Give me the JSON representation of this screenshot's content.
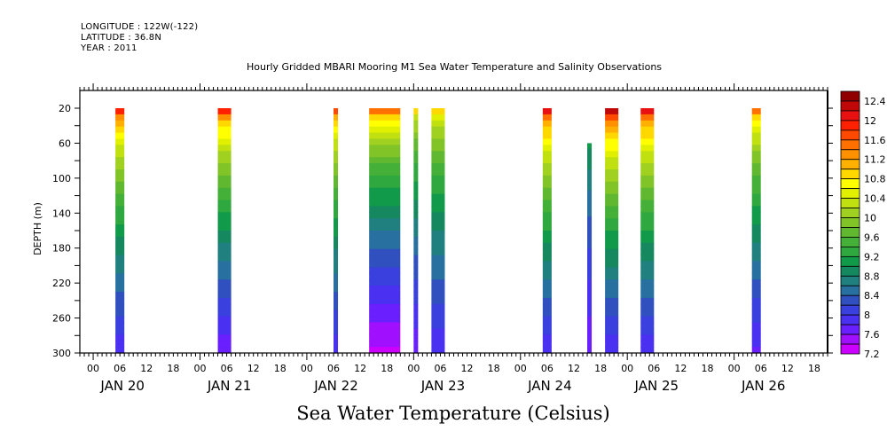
{
  "header": {
    "longitude": "LONGITUDE : 122W(-122)",
    "latitude": "LATITUDE : 36.8N",
    "year": "YEAR : 2011"
  },
  "chart_data": {
    "type": "heatmap",
    "title": "Hourly Gridded MBARI Mooring M1 Sea Water Temperature and Salinity Observations",
    "subtitle": "Sea Water Temperature (Celsius)",
    "xlabel": "",
    "ylabel": "DEPTH (m)",
    "x_range_hours": [
      -3,
      165
    ],
    "x_origin": "JAN 20 00:00",
    "ylim": [
      300,
      0
    ],
    "y_ticks": [
      20,
      60,
      100,
      140,
      180,
      220,
      260,
      300
    ],
    "x_hour_ticks": [
      "00",
      "06",
      "12",
      "18",
      "00",
      "06",
      "12",
      "18",
      "00",
      "06",
      "12",
      "18",
      "00",
      "06",
      "12",
      "18",
      "00",
      "06",
      "12",
      "18",
      "00",
      "06",
      "12",
      "18",
      "00",
      "06",
      "12",
      "18"
    ],
    "x_day_labels": [
      "JAN 20",
      "JAN 21",
      "JAN 22",
      "JAN 23",
      "JAN 24",
      "JAN 25",
      "JAN 26"
    ],
    "colorbar": {
      "levels": [
        7.2,
        7.4,
        7.6,
        7.8,
        8.0,
        8.2,
        8.4,
        8.6,
        8.8,
        9.0,
        9.2,
        9.4,
        9.6,
        9.8,
        10.0,
        10.2,
        10.4,
        10.6,
        10.8,
        11.0,
        11.2,
        11.4,
        11.6,
        11.8,
        12.0,
        12.2,
        12.4,
        12.6
      ],
      "labels": [
        "12.4",
        "12",
        "11.6",
        "11.2",
        "10.8",
        "10.4",
        "10",
        "9.6",
        "9.2",
        "8.8",
        "8.4",
        "8",
        "7.6",
        "7.2"
      ],
      "colors": [
        "#cc00ff",
        "#a010ff",
        "#6a1fff",
        "#4a30f0",
        "#3a40dd",
        "#3050c0",
        "#2870a0",
        "#208080",
        "#158860",
        "#109a4a",
        "#30a840",
        "#45b038",
        "#60b830",
        "#80c428",
        "#a0d020",
        "#c0e010",
        "#e0f000",
        "#ffff00",
        "#ffd800",
        "#ffb000",
        "#ff9000",
        "#ff7000",
        "#ff4800",
        "#ff2000",
        "#e81010",
        "#c00808",
        "#900000"
      ]
    },
    "bars": [
      {
        "start_hour": 5,
        "end_hour": 7,
        "top_depth": 20,
        "surface_temp": 11.8,
        "bottom_temp": 7.8
      },
      {
        "start_hour": 28,
        "end_hour": 31,
        "top_depth": 20,
        "surface_temp": 11.8,
        "bottom_temp": 7.6
      },
      {
        "start_hour": 54,
        "end_hour": 55,
        "top_depth": 20,
        "surface_temp": 11.6,
        "bottom_temp": 7.8
      },
      {
        "start_hour": 62,
        "end_hour": 69,
        "top_depth": 20,
        "surface_temp": 11.4,
        "bottom_temp": 7.3
      },
      {
        "start_hour": 72,
        "end_hour": 73,
        "top_depth": 20,
        "surface_temp": 10.8,
        "bottom_temp": 7.6
      },
      {
        "start_hour": 76,
        "end_hour": 79,
        "top_depth": 20,
        "surface_temp": 10.9,
        "bottom_temp": 7.8
      },
      {
        "start_hour": 101,
        "end_hour": 103,
        "top_depth": 20,
        "surface_temp": 12.0,
        "bottom_temp": 7.8
      },
      {
        "start_hour": 111,
        "end_hour": 112,
        "top_depth": 60,
        "surface_temp": 9.8,
        "bottom_temp": 7.6
      },
      {
        "start_hour": 115,
        "end_hour": 118,
        "top_depth": 20,
        "surface_temp": 12.2,
        "bottom_temp": 7.8
      },
      {
        "start_hour": 123,
        "end_hour": 126,
        "top_depth": 20,
        "surface_temp": 12.0,
        "bottom_temp": 7.8
      },
      {
        "start_hour": 148,
        "end_hour": 150,
        "top_depth": 20,
        "surface_temp": 11.4,
        "bottom_temp": 7.7
      }
    ]
  }
}
